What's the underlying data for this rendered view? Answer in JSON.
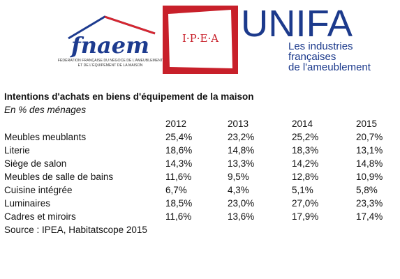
{
  "logos": {
    "fnaem": {
      "name": "fnaem",
      "caption": [
        "FÉDÉRATION FRANÇAISE DU NÉGOCE DE L'AMEUBLEMENT",
        "ET DE L'ÉQUIPEMENT DE LA MAISON"
      ]
    },
    "ipea": "I·P·E·A",
    "unifa": {
      "name": "UNIFA",
      "tagline": [
        "Les industries",
        "françaises",
        "de l'ameublement"
      ]
    }
  },
  "header": {
    "title": "Intentions d'achats en biens d'équipement de la maison",
    "subtitle": "En % des ménages"
  },
  "table": {
    "columns": [
      "2012",
      "2013",
      "2014",
      "2015"
    ],
    "rows": [
      [
        "Meubles meublants",
        "25,4%",
        "23,2%",
        "25,2%",
        "20,7%"
      ],
      [
        "Literie",
        "18,6%",
        "14,8%",
        "18,3%",
        "13,1%"
      ],
      [
        "Siège de salon",
        "14,3%",
        "13,3%",
        "14,2%",
        "14,8%"
      ],
      [
        "Meubles de salle de bains",
        "11,6%",
        "9,5%",
        "12,8%",
        "10,9%"
      ],
      [
        "Cuisine intégrée",
        "6,7%",
        "4,3%",
        "5,1%",
        "5,8%"
      ],
      [
        "Luminaires",
        "18,5%",
        "23,0%",
        "27,0%",
        "23,3%"
      ],
      [
        "Cadres et miroirs",
        "11,6%",
        "13,6%",
        "17,9%",
        "17,4%"
      ]
    ]
  },
  "footer": {
    "source": "Source : IPEA, Habitatscope 2015"
  }
}
